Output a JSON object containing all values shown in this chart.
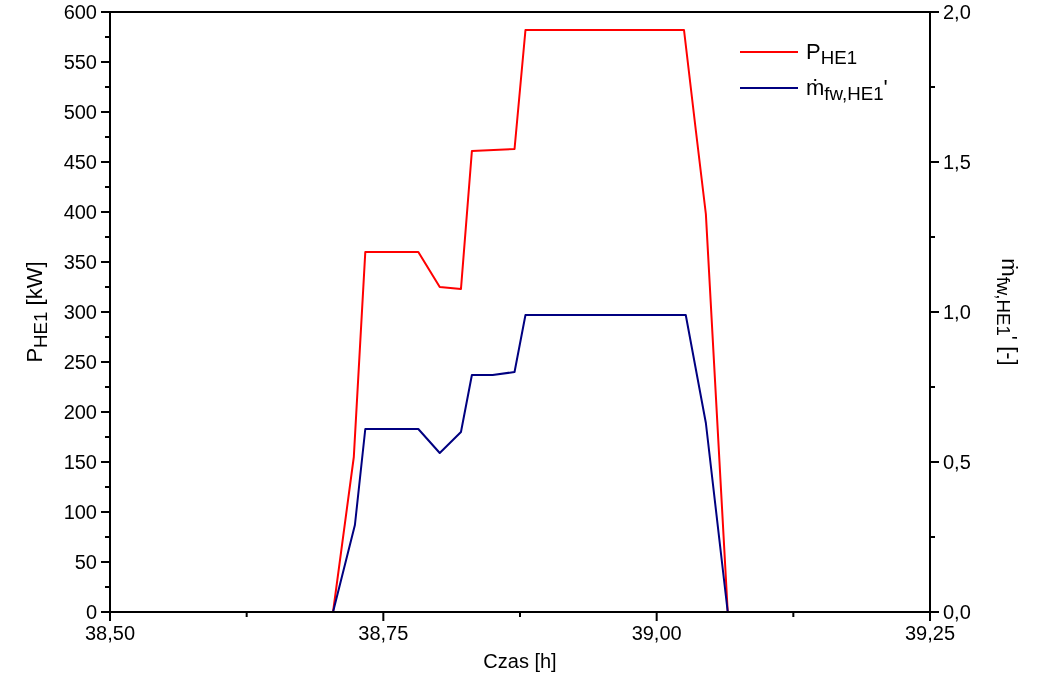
{
  "chart_data": {
    "type": "line",
    "xlabel": "Czas [h]",
    "ylabel": "P$_{HE1}$ [kW]",
    "y2label": "ṁ$_{fw,HE1}$' [-]",
    "xlim": [
      38.5,
      39.25
    ],
    "xticks": [
      {
        "value": 38.5,
        "label": "38,50"
      },
      {
        "value": 38.625,
        "label": null
      },
      {
        "value": 38.75,
        "label": "38,75"
      },
      {
        "value": 38.875,
        "label": null
      },
      {
        "value": 39.0,
        "label": "39,00"
      },
      {
        "value": 39.125,
        "label": null
      },
      {
        "value": 39.25,
        "label": "39,25"
      }
    ],
    "ylim": [
      0,
      600
    ],
    "yticks": [
      0,
      {
        "value": 25,
        "label": null
      },
      50,
      {
        "value": 75,
        "label": null
      },
      100,
      {
        "value": 125,
        "label": null
      },
      150,
      {
        "value": 175,
        "label": null
      },
      200,
      {
        "value": 225,
        "label": null
      },
      250,
      {
        "value": 275,
        "label": null
      },
      300,
      {
        "value": 325,
        "label": null
      },
      350,
      {
        "value": 375,
        "label": null
      },
      400,
      {
        "value": 425,
        "label": null
      },
      450,
      {
        "value": 475,
        "label": null
      },
      500,
      {
        "value": 525,
        "label": null
      },
      550,
      {
        "value": 575,
        "label": null
      },
      600
    ],
    "y2lim": [
      0,
      2
    ],
    "y2ticks": [
      {
        "value": 0,
        "label": "0,0"
      },
      {
        "value": 0.25,
        "label": null
      },
      {
        "value": 0.5,
        "label": "0,5"
      },
      {
        "value": 0.75,
        "label": null
      },
      {
        "value": 1,
        "label": "1,0"
      },
      {
        "value": 1.25,
        "label": null
      },
      {
        "value": 1.5,
        "label": "1,5"
      },
      {
        "value": 1.75,
        "label": null
      },
      {
        "value": 2,
        "label": "2,0"
      }
    ],
    "grid": false,
    "legend": "top right",
    "line_style": "solid",
    "marker": "none",
    "series": [
      {
        "name": "P$_{HE1}$",
        "color": "#ff0000",
        "x": [
          38.704,
          38.723,
          38.7335,
          38.782,
          38.8016,
          38.821,
          38.831,
          38.87,
          38.88,
          39.025,
          39.036,
          39.045,
          39.065
        ],
        "values": [
          0,
          155,
          360,
          360,
          325,
          323,
          461,
          463,
          582,
          582,
          480,
          398,
          0
        ]
      },
      {
        "name": "ṁ$_{fw,HE1}$'",
        "color": "#000080",
        "axis": "y2",
        "x": [
          38.704,
          38.724,
          38.7335,
          38.782,
          38.8016,
          38.821,
          38.831,
          38.85,
          38.87,
          38.88,
          39.0266,
          39.045,
          39.065
        ],
        "values": [
          0,
          0.29,
          0.61,
          0.61,
          0.53,
          0.6,
          0.79,
          0.79,
          0.8,
          0.99,
          0.99,
          0.63,
          0
        ]
      }
    ]
  }
}
